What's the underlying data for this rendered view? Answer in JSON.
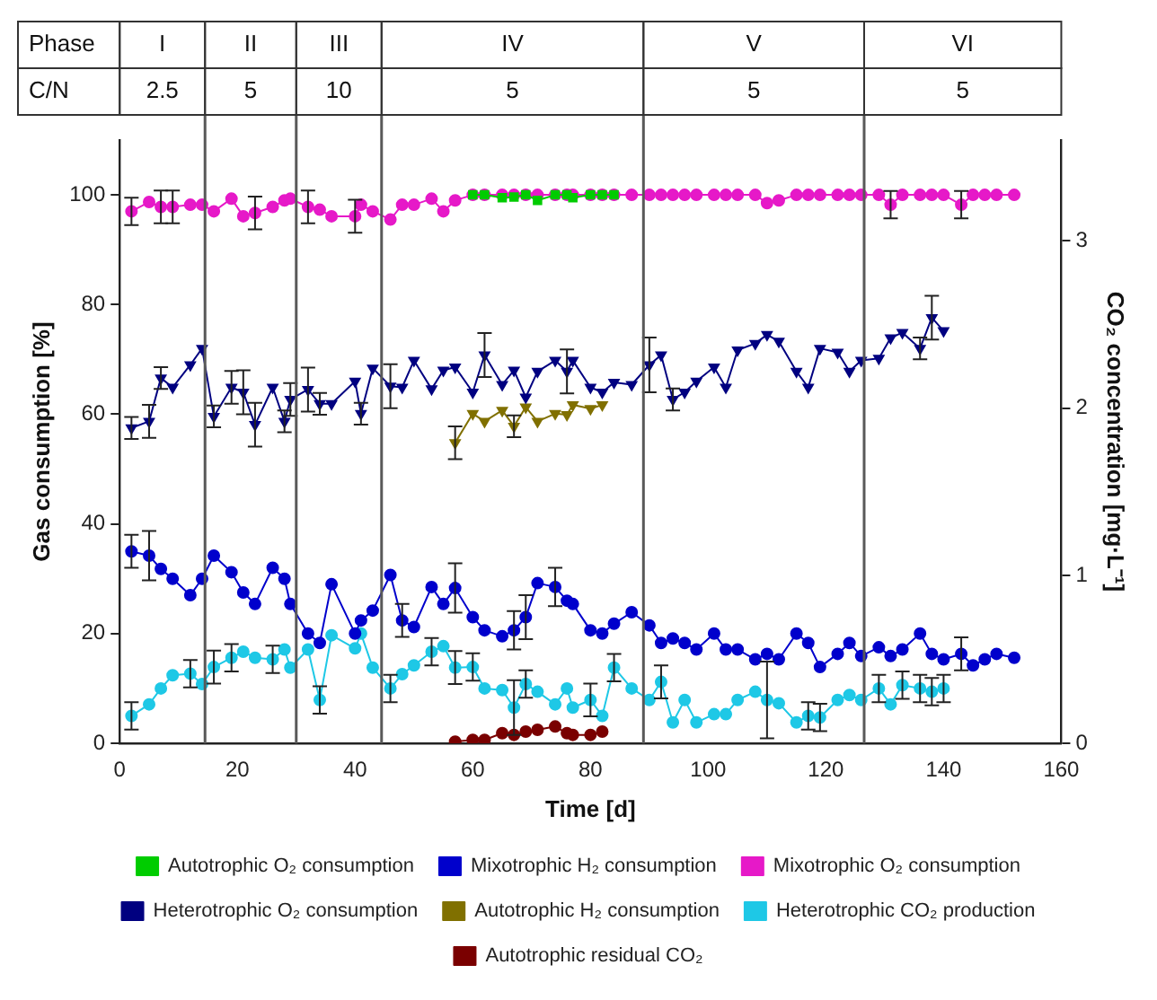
{
  "chart_data": {
    "type": "line",
    "xlabel": "Time [d]",
    "ylabel": "Gas consumption [%]",
    "y2label": "CO₂ concentration [mg·L⁻¹]",
    "xlim": [
      0,
      160
    ],
    "xticks": [
      0,
      20,
      40,
      60,
      80,
      100,
      120,
      140,
      160
    ],
    "ylim": [
      0,
      110
    ],
    "yticks": [
      0,
      20,
      40,
      60,
      80,
      100
    ],
    "y2lim": [
      0,
      3.6
    ],
    "y2ticks": [
      0,
      1,
      2,
      3
    ],
    "grid": false,
    "legend": "bottom",
    "annotations": [
      "Phase",
      "I",
      "II",
      "III",
      "IV",
      "V",
      "VI",
      "C/N",
      "2.5",
      "5",
      "10",
      "5",
      "5",
      "5"
    ],
    "ref_lines": [
      {
        "axis": "x",
        "value": 14.5,
        "color": "#595959"
      },
      {
        "axis": "x",
        "value": 30,
        "color": "#595959"
      },
      {
        "axis": "x",
        "value": 44.5,
        "color": "#595959"
      },
      {
        "axis": "x",
        "value": 89,
        "color": "#595959"
      },
      {
        "axis": "x",
        "value": 126.5,
        "color": "#595959"
      }
    ],
    "series": [
      {
        "name": "Mixotrophic H₂ consumption",
        "color": "#0000cc",
        "marker": "circle",
        "x": [
          2,
          5,
          7,
          9,
          12,
          14,
          16,
          19,
          21,
          23,
          26,
          28,
          29,
          32,
          34,
          36,
          40,
          41,
          43,
          46,
          48,
          50,
          53,
          55,
          57,
          60,
          62,
          65,
          67,
          69,
          71,
          74,
          76,
          77,
          80,
          82,
          84,
          87,
          90,
          92,
          94,
          96,
          98,
          101,
          103,
          105,
          108,
          110,
          112,
          115,
          117,
          119,
          122,
          124,
          126,
          129,
          131,
          133,
          136,
          138,
          140,
          143,
          145,
          147,
          149,
          152
        ],
        "values": [
          35,
          34.2,
          31.8,
          30,
          27,
          30,
          34.2,
          31.2,
          27.5,
          25.4,
          32,
          30,
          25.4,
          20,
          18.3,
          29,
          20,
          22.4,
          24.2,
          30.7,
          22.4,
          21.2,
          28.5,
          25.4,
          28.3,
          23,
          20.6,
          19.5,
          20.6,
          23,
          29.2,
          28.5,
          26,
          25.4,
          20.6,
          20,
          21.8,
          23.9,
          21.5,
          18.3,
          19.1,
          18.3,
          17.1,
          20,
          17.1,
          17.1,
          15.3,
          16.3,
          15.3,
          20,
          18.3,
          13.9,
          16.3,
          18.3,
          15.9,
          17.5,
          15.9,
          17.1,
          20,
          16.3,
          15.3,
          16.3,
          14.2,
          15.3,
          16.3,
          15.6
        ],
        "errors": [
          3,
          4.5,
          null,
          null,
          null,
          null,
          null,
          null,
          null,
          null,
          null,
          null,
          null,
          null,
          null,
          null,
          null,
          null,
          null,
          null,
          3,
          null,
          null,
          null,
          4.5,
          null,
          null,
          null,
          3.5,
          4,
          null,
          3.5,
          null,
          null,
          null,
          null,
          null,
          null,
          null,
          null,
          null,
          null,
          null,
          null,
          null,
          null,
          null,
          null,
          null,
          null,
          null,
          null,
          null,
          null,
          null,
          null,
          null,
          null,
          null,
          null,
          null,
          3,
          null,
          null,
          null,
          null
        ]
      },
      {
        "name": "Mixotrophic O₂ consumption",
        "color": "#e619c8",
        "marker": "circle",
        "x": [
          2,
          5,
          7,
          9,
          12,
          14,
          16,
          19,
          21,
          23,
          26,
          28,
          29,
          32,
          34,
          36,
          40,
          41,
          43,
          46,
          48,
          50,
          53,
          55,
          57,
          60,
          62,
          65,
          67,
          69,
          71,
          74,
          76,
          77,
          80,
          82,
          84,
          87,
          90,
          92,
          94,
          96,
          98,
          101,
          103,
          105,
          108,
          110,
          112,
          115,
          117,
          119,
          122,
          124,
          126,
          129,
          131,
          133,
          136,
          138,
          140,
          143,
          145,
          147,
          149,
          152
        ],
        "values": [
          97,
          98.7,
          97.8,
          97.8,
          98.2,
          98.2,
          97,
          99.3,
          96.1,
          96.7,
          97.8,
          99,
          99.3,
          97.8,
          97.3,
          96.1,
          96.1,
          98.2,
          97,
          95.5,
          98.2,
          98.2,
          99.3,
          97,
          99,
          100,
          100,
          100,
          100,
          100,
          100,
          100,
          100,
          100,
          100,
          100,
          100,
          100,
          100,
          100,
          100,
          100,
          100,
          100,
          100,
          100,
          100,
          98.5,
          99,
          100,
          100,
          100,
          100,
          100,
          100,
          100,
          98.2,
          100,
          100,
          100,
          100,
          98.2,
          100,
          100,
          100,
          100
        ],
        "errors": [
          2.5,
          null,
          3,
          3,
          null,
          null,
          null,
          null,
          null,
          3,
          null,
          null,
          null,
          3,
          null,
          null,
          3,
          null,
          null,
          null,
          null,
          null,
          null,
          null,
          null,
          null,
          null,
          null,
          null,
          null,
          null,
          null,
          null,
          null,
          null,
          null,
          null,
          null,
          null,
          null,
          null,
          null,
          null,
          null,
          null,
          null,
          null,
          null,
          null,
          null,
          null,
          null,
          null,
          null,
          null,
          null,
          2.5,
          null,
          null,
          null,
          null,
          2.5,
          null,
          null,
          null,
          null
        ]
      },
      {
        "name": "Heterotrophic O₂ consumption",
        "color": "#000080",
        "marker": "triangle",
        "x": [
          2,
          5,
          7,
          9,
          12,
          14,
          16,
          19,
          21,
          23,
          26,
          28,
          29,
          32,
          34,
          36,
          40,
          41,
          43,
          46,
          48,
          50,
          53,
          55,
          57,
          60,
          62,
          65,
          67,
          69,
          71,
          74,
          76,
          77,
          80,
          82,
          84,
          87,
          90,
          92,
          94,
          96,
          98,
          101,
          103,
          105,
          108,
          110,
          112,
          115,
          117,
          119,
          122,
          124,
          126,
          129,
          131,
          133,
          136,
          138,
          140
        ],
        "values": [
          57.5,
          58.7,
          66.6,
          64.9,
          69,
          72,
          59.6,
          64.9,
          64,
          58.1,
          64.9,
          58.7,
          62.7,
          64.5,
          61.9,
          61.9,
          66,
          60.1,
          68.4,
          65.1,
          64.9,
          69.8,
          64.6,
          68,
          68.6,
          64,
          70.8,
          65.4,
          68,
          63.1,
          67.8,
          69.8,
          67.8,
          69.8,
          64.9,
          64,
          65.8,
          65.4,
          69,
          70.8,
          62.7,
          64,
          66,
          68.6,
          64.9,
          71.7,
          72.9,
          74.5,
          73.3,
          67.8,
          64.9,
          72,
          71.3,
          67.8,
          69.8,
          70.2,
          73.9,
          74.9,
          72,
          77.6,
          75.2
        ],
        "errors": [
          2,
          3,
          2,
          null,
          null,
          null,
          2,
          3,
          4,
          4,
          null,
          2,
          3,
          4,
          2,
          null,
          null,
          2,
          null,
          4,
          null,
          null,
          null,
          null,
          null,
          null,
          4,
          null,
          null,
          null,
          null,
          null,
          4,
          null,
          null,
          null,
          null,
          null,
          5,
          null,
          2,
          null,
          null,
          null,
          null,
          null,
          null,
          null,
          null,
          null,
          null,
          null,
          null,
          null,
          null,
          null,
          null,
          null,
          2,
          4,
          null
        ]
      },
      {
        "name": "Autotrophic H₂ consumption",
        "color": "#807000",
        "marker": "triangle",
        "x": [
          57,
          60,
          62,
          65,
          67,
          69,
          71,
          74,
          76,
          77,
          80,
          82
        ],
        "values": [
          54.8,
          60.1,
          58.7,
          60.7,
          57.8,
          61.3,
          58.7,
          60.1,
          59.9,
          61.7,
          61,
          61.7
        ],
        "errors": [
          3,
          null,
          null,
          null,
          2,
          null,
          null,
          null,
          null,
          null,
          null,
          null
        ]
      },
      {
        "name": "Autotrophic O₂ consumption",
        "color": "#00cc00",
        "marker": "square",
        "x": [
          60,
          62,
          65,
          67,
          69,
          71,
          74,
          76,
          77,
          80,
          82,
          84
        ],
        "values": [
          100,
          100,
          99.5,
          99.6,
          100,
          99,
          100,
          100,
          99.5,
          100,
          100,
          100
        ]
      },
      {
        "name": "Heterotrophic CO₂ production",
        "color": "#1ec8e6",
        "marker": "circle",
        "x": [
          2,
          5,
          7,
          9,
          12,
          14,
          16,
          19,
          21,
          23,
          26,
          28,
          29,
          32,
          34,
          36,
          40,
          41,
          43,
          46,
          48,
          50,
          53,
          55,
          57,
          60,
          62,
          65,
          67,
          69,
          71,
          74,
          76,
          77,
          80,
          82,
          84,
          87,
          90,
          92,
          94,
          96,
          98,
          101,
          103,
          105,
          108,
          110,
          112,
          115,
          117,
          119,
          122,
          124,
          126,
          129,
          131,
          133,
          136,
          138,
          140
        ],
        "values": [
          5,
          7.1,
          10,
          12.4,
          12.7,
          10.8,
          13.9,
          15.6,
          16.7,
          15.6,
          15.3,
          17.1,
          13.8,
          17.1,
          7.9,
          19.7,
          17.3,
          20,
          13.8,
          10,
          12.6,
          14.2,
          16.7,
          17.7,
          13.8,
          13.9,
          10,
          9.7,
          6.5,
          10.8,
          9.4,
          7.1,
          10,
          6.5,
          7.9,
          5,
          13.8,
          10,
          7.9,
          11.2,
          3.8,
          7.9,
          3.8,
          5.3,
          5.3,
          7.9,
          9.4,
          7.9,
          7.3,
          3.8,
          5,
          4.7,
          7.9,
          8.8,
          7.9,
          10,
          7.1,
          10.6,
          10,
          9.4,
          10
        ],
        "errors": [
          2.5,
          null,
          null,
          null,
          2.5,
          null,
          3,
          2.5,
          null,
          null,
          2.5,
          null,
          null,
          null,
          2.5,
          null,
          null,
          null,
          null,
          2.5,
          null,
          null,
          2.5,
          null,
          3,
          2.5,
          null,
          null,
          5,
          2.5,
          null,
          null,
          null,
          null,
          3,
          null,
          2.5,
          null,
          null,
          3,
          null,
          null,
          null,
          null,
          null,
          null,
          null,
          7,
          null,
          null,
          2.5,
          2.5,
          null,
          null,
          null,
          2.5,
          null,
          2.5,
          2.5,
          2.5,
          2.5
        ]
      },
      {
        "name": "Autotrophic residual CO₂",
        "color": "#7a0000",
        "marker": "circle",
        "axis": "y2",
        "x": [
          57,
          60,
          62,
          65,
          67,
          69,
          71,
          74,
          76,
          77,
          80,
          82
        ],
        "values": [
          0.01,
          0.02,
          0.02,
          0.06,
          0.05,
          0.07,
          0.08,
          0.1,
          0.06,
          0.05,
          0.05,
          0.07
        ]
      }
    ]
  }
}
